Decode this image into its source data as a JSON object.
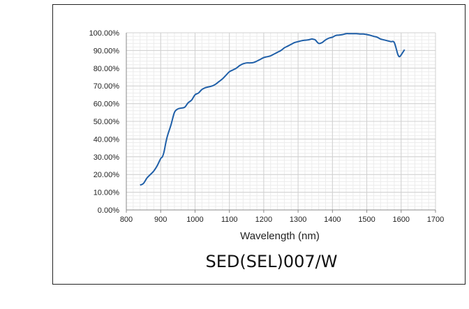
{
  "chart_data": {
    "type": "line",
    "title": "SED(SEL)007/W",
    "xlabel": "Wavelength (nm)",
    "ylabel": "",
    "xlim": [
      800,
      1700
    ],
    "ylim": [
      0,
      100
    ],
    "grid": true,
    "x_ticks": [
      800,
      900,
      1000,
      1100,
      1200,
      1300,
      1400,
      1500,
      1600,
      1700
    ],
    "x_tick_labels": [
      "800",
      "900",
      "1000",
      "1100",
      "1200",
      "1300",
      "1400",
      "1500",
      "1600",
      "1700"
    ],
    "y_ticks": [
      0,
      10,
      20,
      30,
      40,
      50,
      60,
      70,
      80,
      90,
      100
    ],
    "y_tick_labels": [
      "0.00%",
      "10.00%",
      "20.00%",
      "30.00%",
      "40.00%",
      "50.00%",
      "60.00%",
      "70.00%",
      "80.00%",
      "90.00%",
      "100.00%"
    ],
    "line_color": "#1f5fa8",
    "series": [
      {
        "x": [
          840,
          850,
          860,
          870,
          880,
          890,
          900,
          905,
          910,
          915,
          920,
          930,
          940,
          950,
          960,
          970,
          980,
          990,
          1000,
          1010,
          1020,
          1030,
          1040,
          1050,
          1060,
          1070,
          1080,
          1090,
          1100,
          1110,
          1120,
          1130,
          1140,
          1150,
          1160,
          1170,
          1180,
          1190,
          1200,
          1210,
          1220,
          1230,
          1240,
          1250,
          1260,
          1270,
          1280,
          1290,
          1300,
          1310,
          1320,
          1330,
          1340,
          1345,
          1350,
          1360,
          1370,
          1380,
          1390,
          1400,
          1410,
          1420,
          1430,
          1440,
          1450,
          1460,
          1470,
          1480,
          1490,
          1500,
          1510,
          1520,
          1530,
          1540,
          1550,
          1560,
          1570,
          1580,
          1590,
          1595,
          1600,
          1605,
          1610
        ],
        "y": [
          14,
          15,
          18,
          20,
          22,
          25,
          29,
          30,
          33,
          38,
          42,
          48,
          55,
          57,
          57.5,
          58,
          60.5,
          62,
          65,
          66,
          68,
          69,
          69.5,
          70,
          71,
          72.5,
          74,
          76,
          78,
          79,
          80,
          81.5,
          82.5,
          83,
          83,
          83.2,
          84,
          85,
          86,
          86.5,
          87,
          88,
          89,
          90,
          91.5,
          92.5,
          93.5,
          94.5,
          95,
          95.5,
          95.8,
          96,
          96.5,
          96.3,
          96,
          94,
          94.5,
          96,
          97,
          97.5,
          98.5,
          98.7,
          99,
          99.5,
          99.5,
          99.5,
          99.5,
          99.3,
          99.3,
          99,
          98.6,
          98,
          97.5,
          96.5,
          96,
          95.5,
          95,
          94.5,
          88,
          86.5,
          87.5,
          89,
          90.5
        ]
      }
    ]
  }
}
